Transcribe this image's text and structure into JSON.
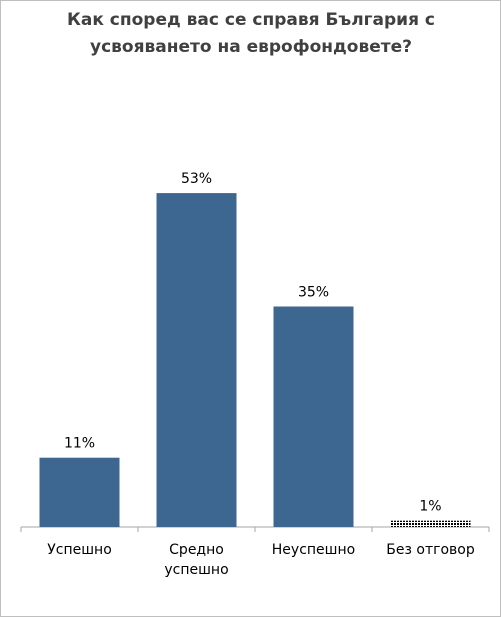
{
  "chart_data": {
    "type": "bar",
    "title": "Как според вас се справя България с усвояването на еврофондовете?",
    "categories": [
      "Успешно",
      "Средно успешно",
      "Неуспешно",
      "Без отговор"
    ],
    "values": [
      11,
      53,
      35,
      1
    ],
    "value_labels": [
      "11%",
      "53%",
      "35%",
      "1%"
    ],
    "colors": [
      "#3d6790",
      "#3d6790",
      "#3d6790",
      "#7f9dc4"
    ],
    "hatched": [
      false,
      false,
      false,
      true
    ]
  }
}
